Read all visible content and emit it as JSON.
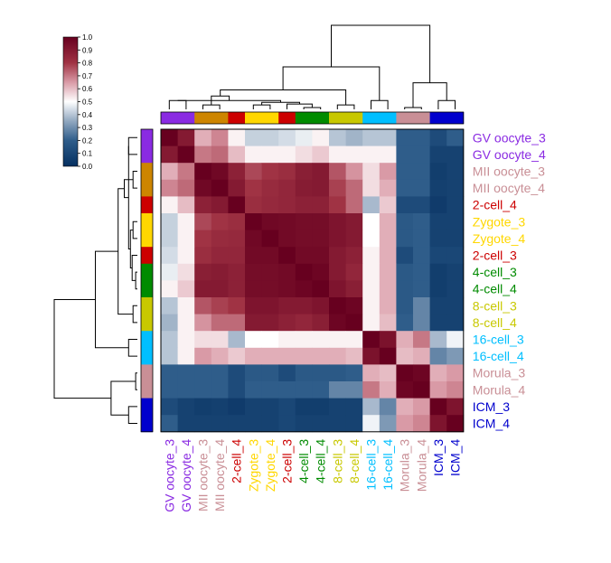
{
  "chart_data": {
    "type": "heatmap",
    "title": "",
    "labels": [
      "GV oocyte_3",
      "GV oocyte_4",
      "MII oocyte_3",
      "MII oocyte_4",
      "2-cell_4",
      "Zygote_3",
      "Zygote_4",
      "2-cell_3",
      "4-cell_3",
      "4-cell_4",
      "8-cell_3",
      "8-cell_4",
      "16-cell_3",
      "16-cell_4",
      "Morula_3",
      "Morula_4",
      "ICM_3",
      "ICM_4"
    ],
    "label_colors": [
      "#8a2be2",
      "#8a2be2",
      "#c98f96",
      "#c98f96",
      "#cc0000",
      "#ffd700",
      "#ffd700",
      "#cc0000",
      "#008b00",
      "#008b00",
      "#c8c800",
      "#c8c800",
      "#00bfff",
      "#00bfff",
      "#c98f96",
      "#c98f96",
      "#0000cd",
      "#0000cd"
    ],
    "group_colors": [
      "#8a2be2",
      "#8a2be2",
      "#cd8500",
      "#cd8500",
      "#cc0000",
      "#ffd700",
      "#ffd700",
      "#cc0000",
      "#008b00",
      "#008b00",
      "#c8c800",
      "#c8c800",
      "#00bfff",
      "#00bfff",
      "#c98f96",
      "#c98f96",
      "#0000cd",
      "#0000cd"
    ],
    "values": [
      [
        1.0,
        0.9,
        0.62,
        0.68,
        0.52,
        0.42,
        0.42,
        0.44,
        0.47,
        0.52,
        0.4,
        0.37,
        0.4,
        0.4,
        0.2,
        0.2,
        0.12,
        0.2
      ],
      [
        0.9,
        1.0,
        0.7,
        0.72,
        0.6,
        0.52,
        0.52,
        0.52,
        0.55,
        0.58,
        0.52,
        0.52,
        0.52,
        0.52,
        0.2,
        0.2,
        0.08,
        0.08
      ],
      [
        0.62,
        0.7,
        1.0,
        0.97,
        0.87,
        0.77,
        0.8,
        0.82,
        0.88,
        0.9,
        0.75,
        0.66,
        0.55,
        0.65,
        0.2,
        0.2,
        0.06,
        0.08
      ],
      [
        0.68,
        0.72,
        0.97,
        1.0,
        0.9,
        0.8,
        0.83,
        0.85,
        0.89,
        0.9,
        0.78,
        0.72,
        0.55,
        0.62,
        0.2,
        0.2,
        0.07,
        0.08
      ],
      [
        0.52,
        0.6,
        0.87,
        0.9,
        1.0,
        0.82,
        0.84,
        0.85,
        0.87,
        0.87,
        0.8,
        0.72,
        0.38,
        0.58,
        0.12,
        0.12,
        0.05,
        0.08
      ],
      [
        0.42,
        0.52,
        0.77,
        0.8,
        0.82,
        1.0,
        0.97,
        0.96,
        0.95,
        0.95,
        0.92,
        0.9,
        0.5,
        0.62,
        0.18,
        0.2,
        0.08,
        0.08
      ],
      [
        0.42,
        0.52,
        0.8,
        0.83,
        0.84,
        0.97,
        1.0,
        0.96,
        0.95,
        0.95,
        0.92,
        0.9,
        0.5,
        0.62,
        0.18,
        0.2,
        0.08,
        0.08
      ],
      [
        0.44,
        0.52,
        0.82,
        0.85,
        0.85,
        0.96,
        0.96,
        1.0,
        0.96,
        0.96,
        0.9,
        0.87,
        0.52,
        0.62,
        0.12,
        0.2,
        0.1,
        0.1
      ],
      [
        0.47,
        0.55,
        0.88,
        0.89,
        0.87,
        0.95,
        0.95,
        0.96,
        1.0,
        0.98,
        0.9,
        0.85,
        0.52,
        0.62,
        0.18,
        0.2,
        0.06,
        0.08
      ],
      [
        0.52,
        0.58,
        0.9,
        0.9,
        0.87,
        0.95,
        0.95,
        0.96,
        0.98,
        1.0,
        0.92,
        0.88,
        0.52,
        0.62,
        0.18,
        0.2,
        0.06,
        0.08
      ],
      [
        0.4,
        0.52,
        0.75,
        0.78,
        0.8,
        0.92,
        0.92,
        0.9,
        0.9,
        0.92,
        1.0,
        0.98,
        0.52,
        0.62,
        0.18,
        0.28,
        0.08,
        0.08
      ],
      [
        0.37,
        0.52,
        0.66,
        0.72,
        0.72,
        0.9,
        0.9,
        0.87,
        0.85,
        0.88,
        0.98,
        1.0,
        0.52,
        0.6,
        0.2,
        0.28,
        0.08,
        0.08
      ],
      [
        0.4,
        0.52,
        0.55,
        0.55,
        0.38,
        0.5,
        0.5,
        0.52,
        0.52,
        0.52,
        0.52,
        0.52,
        1.0,
        0.93,
        0.62,
        0.7,
        0.38,
        0.48
      ],
      [
        0.4,
        0.52,
        0.65,
        0.62,
        0.58,
        0.62,
        0.62,
        0.62,
        0.62,
        0.62,
        0.62,
        0.6,
        0.93,
        1.0,
        0.6,
        0.62,
        0.28,
        0.32
      ],
      [
        0.2,
        0.2,
        0.2,
        0.2,
        0.12,
        0.18,
        0.18,
        0.12,
        0.18,
        0.18,
        0.18,
        0.2,
        0.62,
        0.6,
        1.0,
        0.98,
        0.62,
        0.65
      ],
      [
        0.2,
        0.2,
        0.2,
        0.2,
        0.12,
        0.2,
        0.2,
        0.2,
        0.2,
        0.2,
        0.28,
        0.28,
        0.7,
        0.62,
        0.98,
        1.0,
        0.65,
        0.68
      ],
      [
        0.12,
        0.08,
        0.06,
        0.07,
        0.05,
        0.08,
        0.08,
        0.1,
        0.06,
        0.06,
        0.08,
        0.08,
        0.38,
        0.28,
        0.62,
        0.65,
        1.0,
        0.92
      ],
      [
        0.2,
        0.08,
        0.08,
        0.08,
        0.08,
        0.08,
        0.08,
        0.1,
        0.08,
        0.08,
        0.08,
        0.08,
        0.48,
        0.32,
        0.65,
        0.68,
        0.92,
        1.0
      ]
    ],
    "color_scale": {
      "range": [
        0.0,
        1.0
      ],
      "ticks": [
        "0.0",
        "0.1",
        "0.2",
        "0.3",
        "0.4",
        "0.5",
        "0.6",
        "0.7",
        "0.8",
        "0.9",
        "1.0"
      ],
      "stops": [
        {
          "v": 0.0,
          "color": "#053061"
        },
        {
          "v": 0.2,
          "color": "#2f5d8a"
        },
        {
          "v": 0.35,
          "color": "#92a8c0"
        },
        {
          "v": 0.5,
          "color": "#ffffff"
        },
        {
          "v": 0.65,
          "color": "#d99aa6"
        },
        {
          "v": 0.8,
          "color": "#a03344"
        },
        {
          "v": 1.0,
          "color": "#67001f"
        }
      ]
    },
    "dendrogram": {
      "merges": [
        [
          0,
          1,
          0.1
        ],
        [
          2,
          3,
          0.05
        ],
        [
          5,
          6,
          0.05
        ],
        [
          8,
          9,
          0.02
        ],
        [
          10,
          11,
          0.05
        ],
        [
          12,
          13,
          0.1
        ],
        [
          14,
          15,
          0.02
        ],
        [
          16,
          17,
          0.1
        ],
        [
          7,
          21,
          0.06
        ],
        [
          20,
          26,
          0.08
        ],
        [
          18,
          27,
          0.1
        ],
        [
          19,
          28,
          0.15
        ],
        [
          22,
          29,
          0.22
        ],
        [
          24,
          25,
          0.3
        ],
        [
          30,
          23,
          0.48
        ],
        [
          31,
          32,
          0.95
        ]
      ]
    }
  }
}
